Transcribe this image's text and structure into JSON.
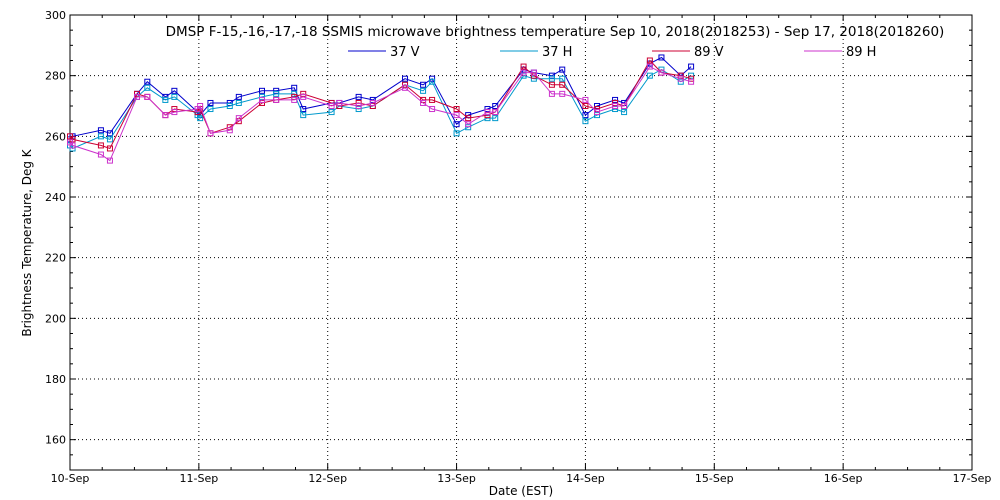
{
  "chart_data": {
    "type": "line",
    "title": "DMSP F-15,-16,-17,-18 SSMIS microwave brightness temperature Sep 10, 2018(2018253) - Sep 17, 2018(2018260)",
    "xlabel": "Date (EST)",
    "ylabel": "Brightness Temperature, Deg K",
    "xlim": [
      0,
      7
    ],
    "ylim": [
      150,
      300
    ],
    "x_ticks": [
      {
        "value": 0,
        "label": "10-Sep"
      },
      {
        "value": 1,
        "label": "11-Sep"
      },
      {
        "value": 2,
        "label": "12-Sep"
      },
      {
        "value": 3,
        "label": "13-Sep"
      },
      {
        "value": 4,
        "label": "14-Sep"
      },
      {
        "value": 5,
        "label": "15-Sep"
      },
      {
        "value": 6,
        "label": "16-Sep"
      },
      {
        "value": 7,
        "label": "17-Sep"
      }
    ],
    "y_ticks": [
      160,
      180,
      200,
      220,
      240,
      260,
      280,
      300
    ],
    "grid": true,
    "legend_position": "top",
    "x": [
      0.0,
      0.02,
      0.24,
      0.31,
      0.52,
      0.6,
      0.74,
      0.81,
      0.99,
      1.01,
      1.09,
      1.24,
      1.31,
      1.49,
      1.6,
      1.74,
      1.81,
      2.03,
      2.09,
      2.24,
      2.35,
      2.6,
      2.74,
      2.81,
      3.0,
      3.09,
      3.24,
      3.3,
      3.52,
      3.6,
      3.74,
      3.82,
      4.0,
      4.09,
      4.23,
      4.3,
      4.5,
      4.59,
      4.74,
      4.82
    ],
    "series": [
      {
        "name": "37 V",
        "color": "#0000cc",
        "values": [
          259,
          260,
          262,
          261,
          274,
          278,
          273,
          275,
          268,
          267,
          271,
          271,
          273,
          275,
          275,
          276,
          269,
          271,
          271,
          273,
          272,
          279,
          277,
          279,
          264,
          267,
          269,
          270,
          282,
          281,
          280,
          282,
          267,
          270,
          272,
          271,
          284,
          286,
          280,
          283
        ]
      },
      {
        "name": "37 H",
        "color": "#0099cc",
        "values": [
          257,
          256,
          260,
          259,
          273,
          276,
          272,
          273,
          267,
          266,
          269,
          270,
          271,
          273,
          274,
          274,
          267,
          268,
          270,
          269,
          270,
          277,
          275,
          278,
          261,
          263,
          266,
          266,
          280,
          279,
          279,
          279,
          265,
          267,
          269,
          268,
          280,
          282,
          278,
          280
        ]
      },
      {
        "name": "89 V",
        "color": "#cc0033",
        "values": [
          260,
          259,
          257,
          256,
          274,
          273,
          267,
          269,
          268,
          269,
          261,
          263,
          265,
          271,
          272,
          273,
          274,
          271,
          270,
          271,
          270,
          277,
          272,
          272,
          269,
          266,
          267,
          268,
          283,
          280,
          277,
          277,
          270,
          269,
          271,
          270,
          285,
          281,
          280,
          279
        ]
      },
      {
        "name": "89 H",
        "color": "#cc33cc",
        "values": [
          258,
          257,
          254,
          252,
          273,
          273,
          267,
          268,
          269,
          270,
          261,
          262,
          266,
          272,
          272,
          272,
          273,
          270,
          271,
          270,
          271,
          276,
          271,
          269,
          267,
          264,
          268,
          268,
          281,
          281,
          274,
          274,
          272,
          268,
          270,
          270,
          283,
          281,
          279,
          278
        ]
      }
    ]
  }
}
